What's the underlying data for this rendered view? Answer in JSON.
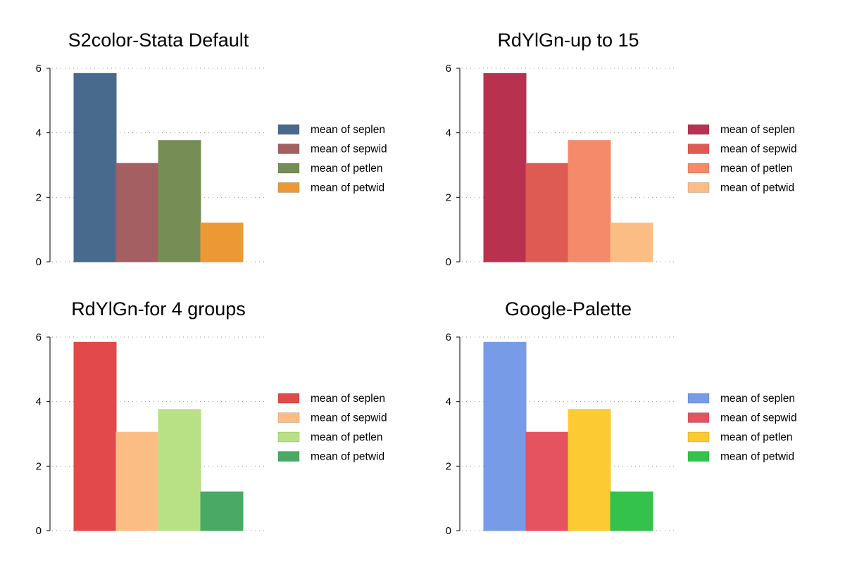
{
  "chart_data": [
    {
      "type": "bar",
      "title": "S2color-Stata Default",
      "xlabel": "",
      "ylabel": "",
      "ylim": [
        0,
        6
      ],
      "yticks": [
        0,
        2,
        4,
        6
      ],
      "grid": true,
      "legend_position": "right",
      "series": [
        {
          "name": "mean of seplen",
          "value": 5.84,
          "color": "#486b8d"
        },
        {
          "name": "mean of sepwid",
          "value": 3.05,
          "color": "#a35f61"
        },
        {
          "name": "mean of petlen",
          "value": 3.76,
          "color": "#768e56"
        },
        {
          "name": "mean of petwid",
          "value": 1.2,
          "color": "#ec9935"
        }
      ]
    },
    {
      "type": "bar",
      "title": "RdYlGn-up to 15",
      "xlabel": "",
      "ylabel": "",
      "ylim": [
        0,
        6
      ],
      "yticks": [
        0,
        2,
        4,
        6
      ],
      "grid": true,
      "legend_position": "right",
      "series": [
        {
          "name": "mean of seplen",
          "value": 5.84,
          "color": "#b8324f"
        },
        {
          "name": "mean of sepwid",
          "value": 3.05,
          "color": "#de5b53"
        },
        {
          "name": "mean of petlen",
          "value": 3.76,
          "color": "#f58a6b"
        },
        {
          "name": "mean of petwid",
          "value": 1.2,
          "color": "#fcbd85"
        }
      ]
    },
    {
      "type": "bar",
      "title": "RdYlGn-for 4 groups",
      "xlabel": "",
      "ylabel": "",
      "ylim": [
        0,
        6
      ],
      "yticks": [
        0,
        2,
        4,
        6
      ],
      "grid": true,
      "legend_position": "right",
      "series": [
        {
          "name": "mean of seplen",
          "value": 5.84,
          "color": "#e2494b"
        },
        {
          "name": "mean of sepwid",
          "value": 3.05,
          "color": "#fcbd85"
        },
        {
          "name": "mean of petlen",
          "value": 3.76,
          "color": "#b8e186"
        },
        {
          "name": "mean of petwid",
          "value": 1.2,
          "color": "#4aa964"
        }
      ]
    },
    {
      "type": "bar",
      "title": "Google-Palette",
      "xlabel": "",
      "ylabel": "",
      "ylim": [
        0,
        6
      ],
      "yticks": [
        0,
        2,
        4,
        6
      ],
      "grid": true,
      "legend_position": "right",
      "series": [
        {
          "name": "mean of seplen",
          "value": 5.84,
          "color": "#789be8"
        },
        {
          "name": "mean of sepwid",
          "value": 3.05,
          "color": "#e55260"
        },
        {
          "name": "mean of petlen",
          "value": 3.76,
          "color": "#fccb33"
        },
        {
          "name": "mean of petwid",
          "value": 1.2,
          "color": "#34c24c"
        }
      ]
    }
  ]
}
